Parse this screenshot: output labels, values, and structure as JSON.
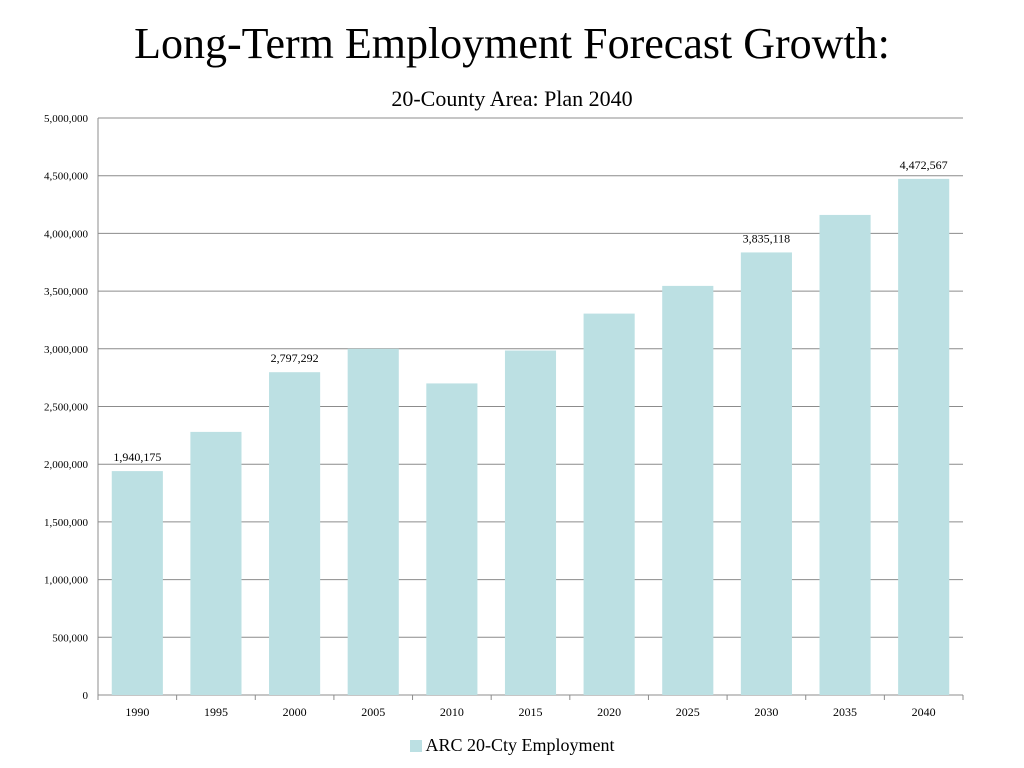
{
  "chart_data": {
    "type": "bar",
    "title": "Long-Term Employment Forecast Growth:",
    "subtitle": "20-County Area: Plan 2040",
    "categories": [
      "1990",
      "1995",
      "2000",
      "2005",
      "2010",
      "2015",
      "2020",
      "2025",
      "2030",
      "2035",
      "2040"
    ],
    "series": [
      {
        "name": "ARC 20-Cty Employment",
        "values": [
          1940175,
          2280000,
          2797292,
          3000000,
          2700000,
          2985000,
          3305000,
          3545000,
          3835118,
          4160000,
          4472567
        ]
      }
    ],
    "data_labels": [
      {
        "category": "1990",
        "text": "1,940,175"
      },
      {
        "category": "2000",
        "text": "2,797,292"
      },
      {
        "category": "2030",
        "text": "3,835,118"
      },
      {
        "category": "2040",
        "text": "4,472,567"
      }
    ],
    "y_ticks": [
      "0",
      "500,000",
      "1,000,000",
      "1,500,000",
      "2,000,000",
      "2,500,000",
      "3,000,000",
      "3,500,000",
      "4,000,000",
      "4,500,000",
      "5,000,000"
    ],
    "ylim": [
      0,
      5000000
    ],
    "grid": true,
    "legend_position": "bottom",
    "colors": {
      "bar": "#bce0e3",
      "grid": "#8c8c8c",
      "axis": "#8c8c8c"
    }
  }
}
